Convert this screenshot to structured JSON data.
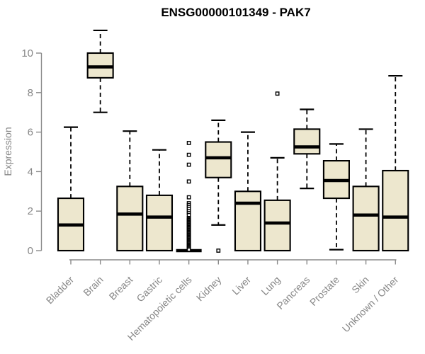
{
  "chart_data": {
    "type": "boxplot",
    "title": "ENSG00000101349 - PAK7",
    "xlabel": "",
    "ylabel": "Expression",
    "ylim": [
      0,
      11.2
    ],
    "yticks": [
      0,
      2,
      4,
      6,
      8,
      10
    ],
    "grid": false,
    "legend": false,
    "categories": [
      "Bladder",
      "Brain",
      "Breast",
      "Gastric",
      "Hematopoietic cells",
      "Kidney",
      "Liver",
      "Lung",
      "Pancreas",
      "Prostate",
      "Skin",
      "Unknown / Other"
    ],
    "boxes": [
      {
        "category": "Bladder",
        "whisker_low": 0,
        "q1": 0,
        "median": 1.3,
        "q3": 2.65,
        "whisker_high": 6.25,
        "outliers": []
      },
      {
        "category": "Brain",
        "whisker_low": 7.0,
        "q1": 8.75,
        "median": 9.3,
        "q3": 10.0,
        "whisker_high": 11.15,
        "outliers": []
      },
      {
        "category": "Breast",
        "whisker_low": 0,
        "q1": 0,
        "median": 1.85,
        "q3": 3.25,
        "whisker_high": 6.05,
        "outliers": []
      },
      {
        "category": "Gastric",
        "whisker_low": 0,
        "q1": 0,
        "median": 1.7,
        "q3": 2.8,
        "whisker_high": 5.1,
        "outliers": []
      },
      {
        "category": "Hematopoietic cells",
        "whisker_low": 0,
        "q1": 0,
        "median": 0,
        "q3": 0,
        "whisker_high": 0,
        "outliers": [
          5.45,
          4.85,
          4.35,
          3.5,
          2.7,
          2.4,
          2.3,
          2.2,
          2.1,
          2.0,
          1.9,
          1.8,
          1.65,
          1.6,
          1.55,
          1.5,
          1.45,
          1.4,
          1.35,
          1.3,
          1.25,
          1.2,
          1.15,
          1.1,
          1.05,
          1.0,
          0.95,
          0.9,
          0.85,
          0.8,
          0.75,
          0.7,
          0.65,
          0.6,
          0.55,
          0.5,
          0.45,
          0.4,
          0.35,
          0.3,
          0.25,
          0.2,
          0.15,
          0.1,
          0.05
        ]
      },
      {
        "category": "Kidney",
        "whisker_low": 1.3,
        "q1": 3.7,
        "median": 4.7,
        "q3": 5.5,
        "whisker_high": 6.6,
        "outliers": [
          0
        ]
      },
      {
        "category": "Liver",
        "whisker_low": 0,
        "q1": 0,
        "median": 2.4,
        "q3": 3.0,
        "whisker_high": 6.0,
        "outliers": []
      },
      {
        "category": "Lung",
        "whisker_low": 0,
        "q1": 0,
        "median": 1.4,
        "q3": 2.55,
        "whisker_high": 4.7,
        "outliers": [
          7.95
        ]
      },
      {
        "category": "Pancreas",
        "whisker_low": 3.15,
        "q1": 4.9,
        "median": 5.25,
        "q3": 6.15,
        "whisker_high": 7.15,
        "outliers": []
      },
      {
        "category": "Prostate",
        "whisker_low": 0.05,
        "q1": 2.65,
        "median": 3.55,
        "q3": 4.55,
        "whisker_high": 5.4,
        "outliers": []
      },
      {
        "category": "Skin",
        "whisker_low": 0,
        "q1": 0,
        "median": 1.8,
        "q3": 3.25,
        "whisker_high": 6.15,
        "outliers": []
      },
      {
        "category": "Unknown / Other",
        "whisker_low": 0,
        "q1": 0,
        "median": 1.7,
        "q3": 4.05,
        "whisker_high": 8.85,
        "outliers": []
      }
    ],
    "colors": {
      "background": "#FFFFFF",
      "box_fill": "#EDE7CE",
      "box_border": "#000000",
      "median": "#000000",
      "whisker": "#000000",
      "outlier": "#000000",
      "axis": "#8A8A8A",
      "tick_label": "#878787",
      "title": "#000000"
    }
  }
}
